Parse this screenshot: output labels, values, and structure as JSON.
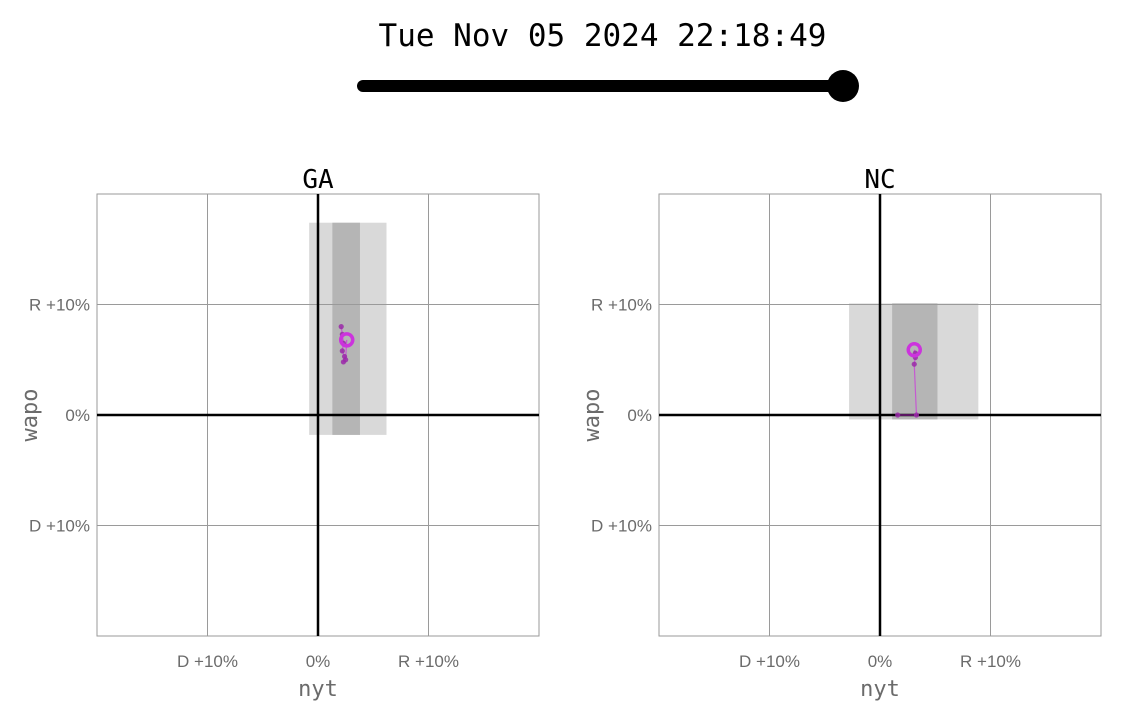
{
  "timestamp": "Tue Nov 05 2024 22:18:49",
  "slider": {
    "position": 1.0
  },
  "colors": {
    "marker": "#cc33dd",
    "trail": "#9a2aa8",
    "band_light": "#d9d9d9",
    "band_dark": "#b5b5b5",
    "grid": "#9a9a9a",
    "axis": "#000000"
  },
  "chart_data": [
    {
      "type": "scatter",
      "title": "GA",
      "xlabel": "nyt",
      "ylabel": "wapo",
      "xlim": [
        -20,
        20
      ],
      "ylim": [
        -20,
        20
      ],
      "x_ticks": [
        {
          "value": -10,
          "label": "D +10%"
        },
        {
          "value": 0,
          "label": "0%"
        },
        {
          "value": 10,
          "label": "R +10%"
        }
      ],
      "y_ticks": [
        {
          "value": 10,
          "label": "R +10%"
        },
        {
          "value": 0,
          "label": "0%"
        },
        {
          "value": -10,
          "label": "D +10%"
        }
      ],
      "uncertainty_outer": {
        "x": [
          -0.8,
          6.2
        ],
        "y": [
          -1.8,
          17.4
        ]
      },
      "uncertainty_inner": {
        "x": [
          1.3,
          3.8
        ],
        "y": [
          -1.8,
          17.4
        ]
      },
      "trail": [
        {
          "x": 2.1,
          "y": 8.0
        },
        {
          "x": 2.2,
          "y": 7.3
        },
        {
          "x": 2.3,
          "y": 6.5
        },
        {
          "x": 2.2,
          "y": 5.8
        },
        {
          "x": 2.4,
          "y": 5.3
        },
        {
          "x": 2.3,
          "y": 4.8
        },
        {
          "x": 2.5,
          "y": 5.0
        }
      ],
      "current": {
        "x": 2.6,
        "y": 6.8
      }
    },
    {
      "type": "scatter",
      "title": "NC",
      "xlabel": "nyt",
      "ylabel": "wapo",
      "xlim": [
        -20,
        20
      ],
      "ylim": [
        -20,
        20
      ],
      "x_ticks": [
        {
          "value": -10,
          "label": "D +10%"
        },
        {
          "value": 0,
          "label": "0%"
        },
        {
          "value": 10,
          "label": "R +10%"
        }
      ],
      "y_ticks": [
        {
          "value": 10,
          "label": "R +10%"
        },
        {
          "value": 0,
          "label": "0%"
        },
        {
          "value": -10,
          "label": "D +10%"
        }
      ],
      "uncertainty_outer": {
        "x": [
          -2.8,
          8.9
        ],
        "y": [
          -0.4,
          10.1
        ]
      },
      "uncertainty_inner": {
        "x": [
          1.1,
          5.2
        ],
        "y": [
          -0.4,
          10.1
        ]
      },
      "trail": [
        {
          "x": 1.6,
          "y": 0.0
        },
        {
          "x": 3.3,
          "y": 0.0
        },
        {
          "x": 3.1,
          "y": 4.6
        },
        {
          "x": 3.2,
          "y": 5.2
        },
        {
          "x": 3.2,
          "y": 5.6
        }
      ],
      "current": {
        "x": 3.1,
        "y": 5.9
      }
    }
  ]
}
